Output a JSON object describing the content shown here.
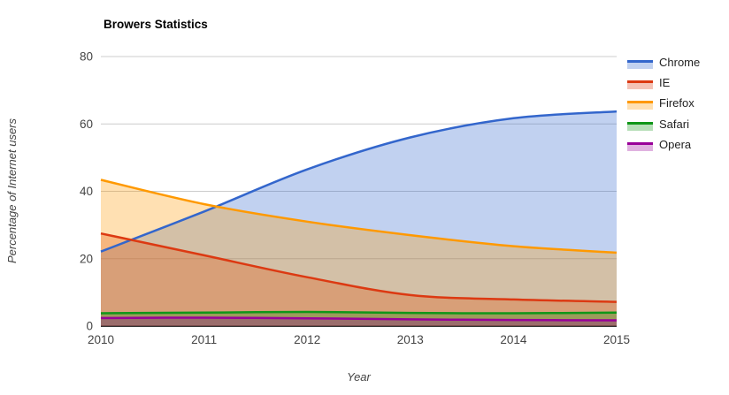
{
  "chart": {
    "title": "Browers Statistics",
    "xlabel": "Year",
    "ylabel": "Percentage of Internet users"
  },
  "chart_data": {
    "type": "area",
    "title": "Browers Statistics",
    "xlabel": "Year",
    "ylabel": "Percentage of Internet users",
    "x": [
      2010,
      2011,
      2012,
      2013,
      2014,
      2015
    ],
    "series": [
      {
        "name": "Chrome",
        "color": "#3366CC",
        "values": [
          22.1,
          34.0,
          46.5,
          56.0,
          61.7,
          63.7
        ]
      },
      {
        "name": "IE",
        "color": "#DC3912",
        "values": [
          27.5,
          21.0,
          14.5,
          9.2,
          7.9,
          7.2
        ]
      },
      {
        "name": "Firefox",
        "color": "#FF9900",
        "values": [
          43.4,
          36.2,
          31.0,
          27.0,
          23.7,
          21.8
        ]
      },
      {
        "name": "Safari",
        "color": "#109618",
        "values": [
          3.8,
          4.0,
          4.2,
          3.9,
          3.8,
          4.0
        ]
      },
      {
        "name": "Opera",
        "color": "#990099",
        "values": [
          2.4,
          2.5,
          2.3,
          2.0,
          1.8,
          1.7
        ]
      }
    ],
    "ylim": [
      0,
      80
    ],
    "yticks": [
      0,
      20,
      40,
      60,
      80
    ],
    "fill_opacity": 0.3,
    "line_width": 2.5,
    "curve": "smooth",
    "grid": true,
    "gridline_color": "#cccccc",
    "baseline_color": "#333333",
    "tick_label_color": "#444444",
    "legend_text_color": "#222222",
    "legend_position": "right"
  }
}
